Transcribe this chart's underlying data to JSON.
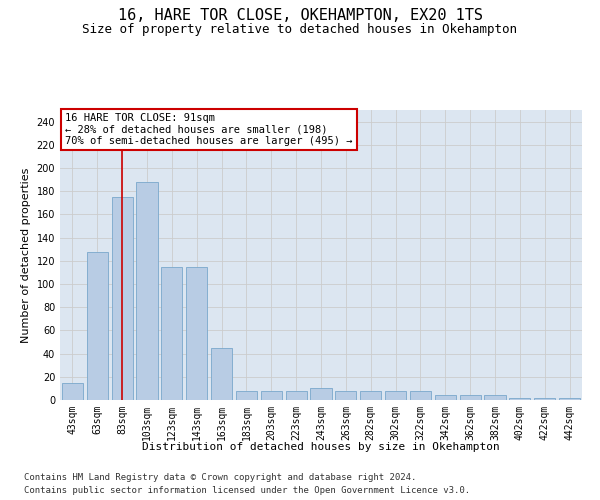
{
  "title1": "16, HARE TOR CLOSE, OKEHAMPTON, EX20 1TS",
  "title2": "Size of property relative to detached houses in Okehampton",
  "xlabel": "Distribution of detached houses by size in Okehampton",
  "ylabel": "Number of detached properties",
  "categories": [
    "43sqm",
    "63sqm",
    "83sqm",
    "103sqm",
    "123sqm",
    "143sqm",
    "163sqm",
    "183sqm",
    "203sqm",
    "223sqm",
    "243sqm",
    "263sqm",
    "282sqm",
    "302sqm",
    "322sqm",
    "342sqm",
    "362sqm",
    "382sqm",
    "402sqm",
    "422sqm",
    "442sqm"
  ],
  "values": [
    15,
    128,
    175,
    188,
    115,
    115,
    45,
    8,
    8,
    8,
    10,
    8,
    8,
    8,
    8,
    4,
    4,
    4,
    2,
    2,
    2
  ],
  "bar_color": "#b8cce4",
  "bar_edge_color": "#7aa7cc",
  "bar_edge_width": 0.6,
  "red_line_x": 2.0,
  "annotation_text": "16 HARE TOR CLOSE: 91sqm\n← 28% of detached houses are smaller (198)\n70% of semi-detached houses are larger (495) →",
  "annotation_box_facecolor": "#ffffff",
  "annotation_box_edgecolor": "#cc0000",
  "ylim": [
    0,
    250
  ],
  "yticks": [
    0,
    20,
    40,
    60,
    80,
    100,
    120,
    140,
    160,
    180,
    200,
    220,
    240
  ],
  "grid_color": "#cccccc",
  "bg_color": "#dce6f1",
  "footer1": "Contains HM Land Registry data © Crown copyright and database right 2024.",
  "footer2": "Contains public sector information licensed under the Open Government Licence v3.0.",
  "title1_fontsize": 11,
  "title2_fontsize": 9,
  "xlabel_fontsize": 8,
  "ylabel_fontsize": 8,
  "tick_fontsize": 7,
  "annotation_fontsize": 7.5,
  "footer_fontsize": 6.5
}
